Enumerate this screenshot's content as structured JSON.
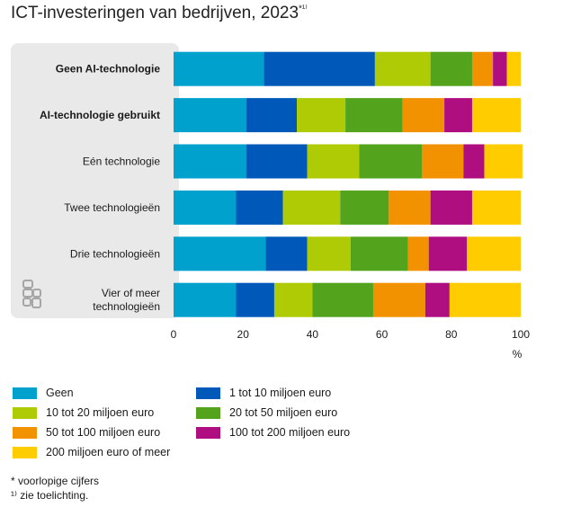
{
  "title": "ICT-investeringen van bedrijven, 2023",
  "title_marker": "*¹⁾",
  "unit_label": "%",
  "notes": [
    "* voorlopige cijfers",
    "¹⁾ zie toelichting."
  ],
  "logo_text": "cbs",
  "chart_data": {
    "type": "bar",
    "orientation": "horizontal",
    "stacked": true,
    "categories": [
      [
        "Geen AI-technologie"
      ],
      [
        "AI-technologie gebruikt"
      ],
      [
        "Eén technologie"
      ],
      [
        "Twee technologieën"
      ],
      [
        "Drie technologieën"
      ],
      [
        "Vier of meer",
        "technologieën"
      ]
    ],
    "bold_categories": [
      0,
      1
    ],
    "xlim": [
      0,
      100
    ],
    "xticks": [
      0,
      20,
      40,
      60,
      80,
      100
    ],
    "xlabel": "%",
    "grid": false,
    "legend_position": "bottom",
    "series": [
      {
        "name": "Geen",
        "color": "#00a1cd",
        "values": [
          26,
          21,
          21,
          18,
          26.5,
          18
        ]
      },
      {
        "name": "1 tot 10 miljoen euro",
        "color": "#0058b8",
        "values": [
          32,
          14.5,
          17.5,
          13.5,
          12,
          11
        ]
      },
      {
        "name": "10 tot 20 miljoen euro",
        "color": "#afcb05",
        "values": [
          16,
          14,
          15,
          16.5,
          12.5,
          11
        ]
      },
      {
        "name": "20 tot 50 miljoen euro",
        "color": "#53a31d",
        "values": [
          12,
          16.5,
          18,
          14,
          16.5,
          17.5
        ]
      },
      {
        "name": "50 tot 100 miljoen euro",
        "color": "#f39200",
        "values": [
          6,
          12,
          12,
          12,
          6,
          15
        ]
      },
      {
        "name": "100 tot 200 miljoen euro",
        "color": "#af0e80",
        "values": [
          4,
          8,
          6,
          12,
          11,
          7
        ]
      },
      {
        "name": "200 miljoen euro of meer",
        "color": "#ffcc00",
        "values": [
          4,
          14,
          11,
          14,
          15.5,
          20.5
        ]
      }
    ]
  }
}
